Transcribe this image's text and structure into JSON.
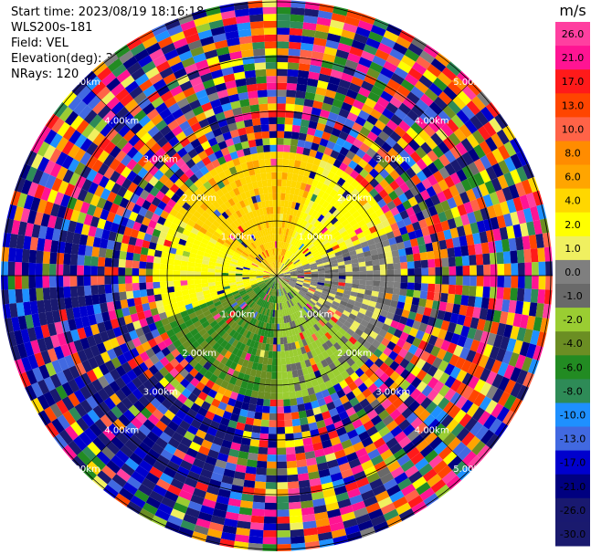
{
  "header": {
    "start_time": "Start time: 2023/08/19 18:16:18",
    "instrument": "WLS200s-181",
    "field": "Field: VEL",
    "elevation": "Elevation(deg): 35.30",
    "nrays": "NRays: 120"
  },
  "chart_data": {
    "type": "ppi",
    "field": "VEL",
    "elevation_deg": 35.3,
    "n_rays": 120,
    "range_rings_km": [
      1,
      2,
      3,
      4,
      5
    ],
    "ring_labels": [
      "1.00km",
      "2.00km",
      "3.00km",
      "4.00km",
      "5.00km"
    ],
    "colorbar": {
      "unit": "m/s",
      "ticks": [
        "26.0",
        "21.0",
        "17.0",
        "13.0",
        "10.0",
        "8.0",
        "6.0",
        "4.0",
        "2.0",
        "1.0",
        "0.0",
        "-1.0",
        "-2.0",
        "-4.0",
        "-6.0",
        "-8.0",
        "-10.0",
        "-13.0",
        "-17.0",
        "-21.0",
        "-26.0",
        "-30.0"
      ],
      "colors": [
        "#ff3fa0",
        "#ff1493",
        "#ff1a1a",
        "#ff4500",
        "#ff6347",
        "#ff8c00",
        "#ffa500",
        "#ffd700",
        "#ffff00",
        "#f0f060",
        "#7f7f7f",
        "#696969",
        "#9acd32",
        "#6b8e23",
        "#228b22",
        "#2e8b57",
        "#1e90ff",
        "#4169e1",
        "#0000cd",
        "#000080",
        "#191970",
        "#1a1a6e"
      ]
    },
    "sectors": [
      {
        "name": "north-west (toward top-left)",
        "dominant": "4.0 to 2.0 m/s (orange-yellow)"
      },
      {
        "name": "north-east (toward top-right)",
        "dominant": "2.0 m/s (yellow)"
      },
      {
        "name": "east",
        "dominant": "0.0 to -2.0 m/s (gray / yellow-green)"
      },
      {
        "name": "south",
        "dominant": "-4.0 to -8.0 m/s (green)"
      },
      {
        "name": "south-west (toward bottom-left)",
        "dominant": "-13.0 to -30.0 m/s (blue / navy) at far range"
      }
    ]
  }
}
